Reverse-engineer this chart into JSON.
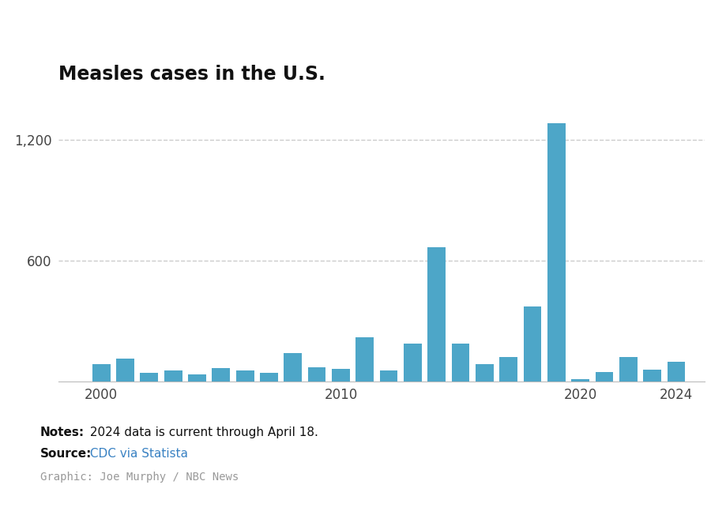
{
  "title": "Measles cases in the U.S.",
  "years": [
    2000,
    2001,
    2002,
    2003,
    2004,
    2005,
    2006,
    2007,
    2008,
    2009,
    2010,
    2011,
    2012,
    2013,
    2014,
    2015,
    2016,
    2017,
    2018,
    2019,
    2020,
    2021,
    2022,
    2023,
    2024
  ],
  "values": [
    86,
    116,
    44,
    56,
    37,
    66,
    55,
    43,
    140,
    71,
    63,
    220,
    55,
    187,
    667,
    188,
    86,
    120,
    372,
    1282,
    13,
    49,
    121,
    58,
    97
  ],
  "bar_color": "#4da6c8",
  "background_color": "#ffffff",
  "ytick_labels": [
    "600",
    "1,200"
  ],
  "ytick_values": [
    600,
    1200
  ],
  "notes_bold": "Notes:",
  "notes_text": " 2024 data is current through April 18.",
  "source_bold": "Source:",
  "source_text": " CDC via Statista",
  "source_url_color": "#3a82c3",
  "graphic_text": "Graphic: Joe Murphy / NBC News",
  "ylim": [
    0,
    1420
  ],
  "grid_color": "#cccccc",
  "xtick_positions": [
    2000,
    2010,
    2020,
    2024
  ],
  "xtick_labels": [
    "2000",
    "2010",
    "2020",
    "2024"
  ],
  "xlim_left": 1998.2,
  "xlim_right": 2025.2
}
